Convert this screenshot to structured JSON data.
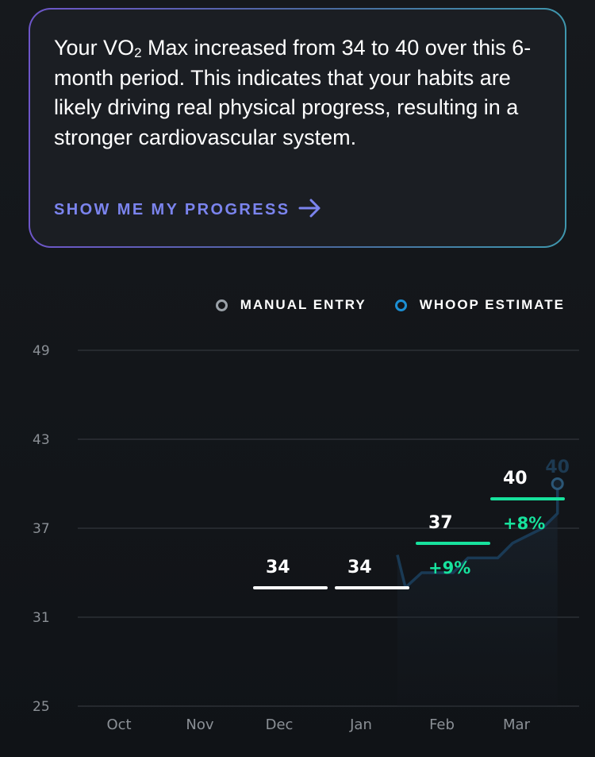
{
  "card": {
    "text_part1": "Your VO",
    "text_subscript": "2",
    "text_part2": " Max increased from 34 to 40 over this 6-month period. This indicates that your habits are likely driving real physical progress, resulting in a stronger cardiovascular system.",
    "cta_label": "SHOW ME MY PROGRESS",
    "cta_icon": "arrow-right-icon",
    "gradient_colors": [
      "#6e56c9",
      "#3f97ae"
    ],
    "cta_color": "#7b84ee"
  },
  "legend": {
    "manual_entry": "MANUAL ENTRY",
    "whoop_estimate": "WHOOP ESTIMATE"
  },
  "colors": {
    "manual": "#ffffff",
    "improved": "#17e29d",
    "whoop_line": "#1a3a55",
    "whoop_dot": "#1c8fd4",
    "grid": "#2c3036"
  },
  "chart_data": {
    "type": "line",
    "ylim": [
      25,
      49
    ],
    "yticks": [
      "49",
      "43",
      "37",
      "31",
      "25"
    ],
    "categories": [
      "Oct",
      "Nov",
      "Dec",
      "Jan",
      "Feb",
      "Mar"
    ],
    "grid": true,
    "legend_position": "top-right",
    "manual_entries": [
      {
        "month": "Dec",
        "value": 34,
        "label": "34",
        "change": "",
        "improved": false
      },
      {
        "month": "Jan",
        "value": 34,
        "label": "34",
        "change": "",
        "improved": false
      },
      {
        "month": "Feb",
        "value": 37,
        "label": "37",
        "change": "+9%",
        "improved": true
      },
      {
        "month": "Mar",
        "value": 40,
        "label": "40",
        "change": "+8%",
        "improved": true
      }
    ],
    "whoop_estimate": {
      "x": [
        3.55,
        3.75,
        4.15,
        4.35,
        4.75,
        4.95,
        5.35,
        5.55
      ],
      "y": [
        33,
        34,
        34,
        35,
        35,
        36,
        37,
        38
      ],
      "end_value": 40,
      "end_label": "40"
    }
  }
}
